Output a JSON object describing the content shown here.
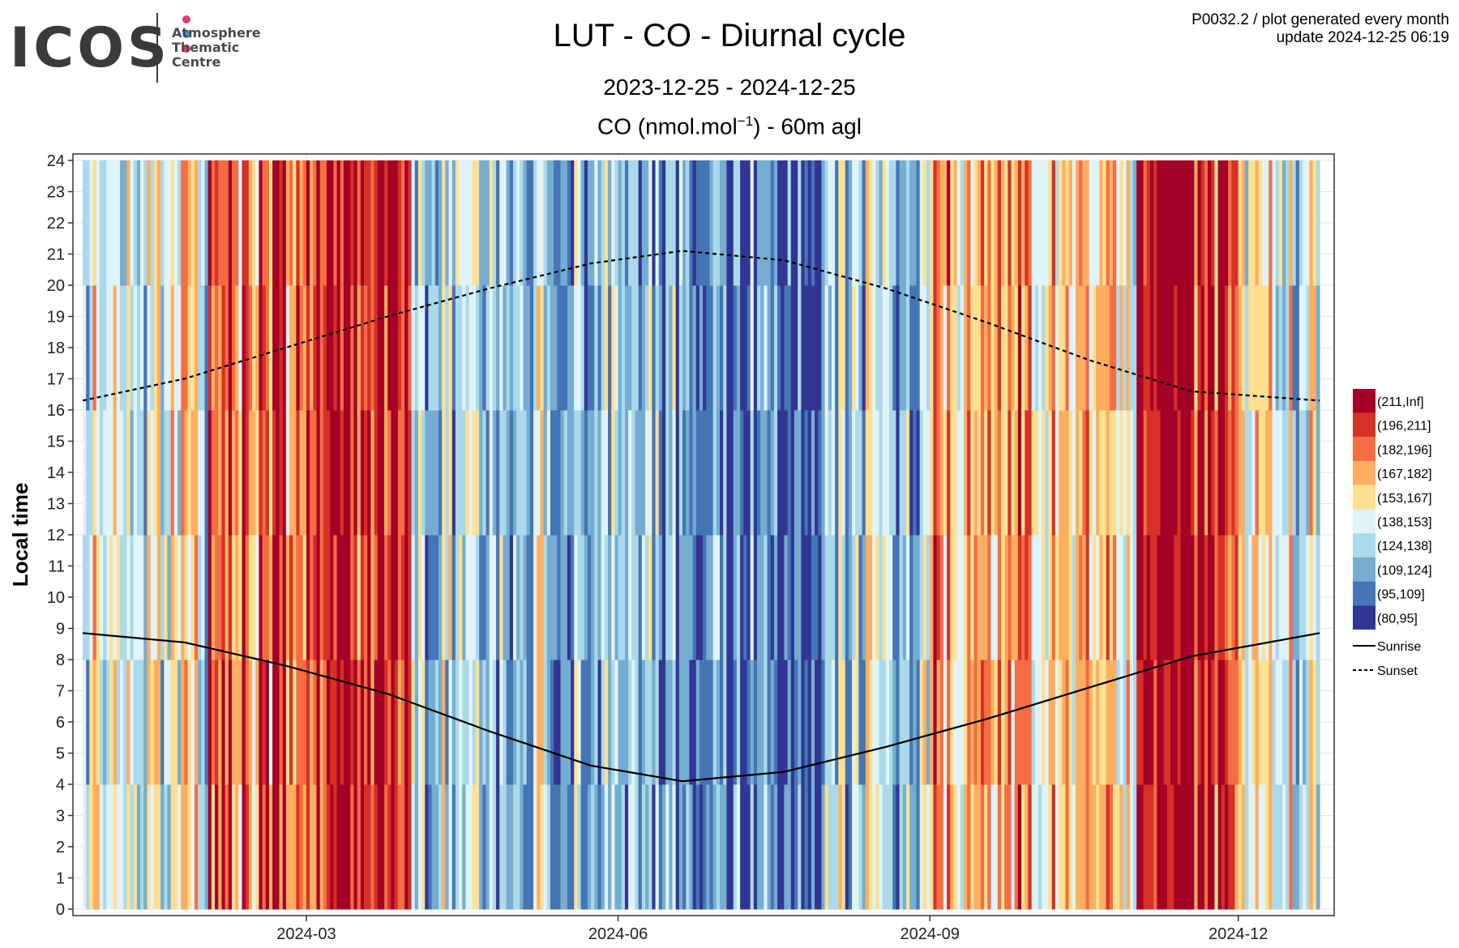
{
  "logo": {
    "word": "ICOS",
    "lines": [
      "Atmosphere",
      "Thematic",
      "Centre"
    ],
    "dot_colors": [
      "#e8356d",
      "#2e9fd9",
      "#e8356d"
    ]
  },
  "header": {
    "title": "LUT - CO - Diurnal cycle",
    "period": "2023-12-25 - 2024-12-25",
    "subtitle_pre": "CO (nmol.mol",
    "subtitle_sup": "−1",
    "subtitle_post": ") - 60m agl",
    "meta_line1": "P0032.2 / plot generated every month",
    "meta_line2": "update  2024-12-25 06:19"
  },
  "chart_data": {
    "type": "heatmap",
    "title": "LUT - CO - Diurnal cycle",
    "subtitle": "CO (nmol.mol-1) - 60m agl",
    "period": "2023-12-25 - 2024-12-25",
    "xlabel": "",
    "ylabel": "Local time",
    "x_start": "2023-12-26",
    "x_end": "2024-12-25",
    "x_ticks": [
      "2024-03",
      "2024-06",
      "2024-09",
      "2024-12"
    ],
    "x_tick_dates": [
      "2024-03-01",
      "2024-06-01",
      "2024-09-01",
      "2024-12-01"
    ],
    "ylim": [
      0,
      24
    ],
    "y_ticks": [
      0,
      1,
      2,
      3,
      4,
      5,
      6,
      7,
      8,
      9,
      10,
      11,
      12,
      13,
      14,
      15,
      16,
      17,
      18,
      19,
      20,
      21,
      22,
      23,
      24
    ],
    "grid": true,
    "legend_position": "right",
    "color_classes": [
      {
        "label": "(211,Inf]",
        "color": "#a50026"
      },
      {
        "label": "(196,211]",
        "color": "#d73027"
      },
      {
        "label": "(182,196]",
        "color": "#f46d43"
      },
      {
        "label": "(167,182]",
        "color": "#fdae61"
      },
      {
        "label": "(153,167]",
        "color": "#fee090"
      },
      {
        "label": "(138,153]",
        "color": "#e0f3f8"
      },
      {
        "label": "(124,138]",
        "color": "#abd9e9"
      },
      {
        "label": "(109,124]",
        "color": "#74add1"
      },
      {
        "label": "(95,109]",
        "color": "#4575b4"
      },
      {
        "label": "(80,95]",
        "color": "#313695"
      }
    ],
    "monthly_dominant_class": [
      {
        "month": "2024-01",
        "class": "(138,153]"
      },
      {
        "month": "2024-02",
        "class": "(182,196]"
      },
      {
        "month": "2024-03",
        "class": "(196,211]"
      },
      {
        "month": "2024-04",
        "class": "(124,138]"
      },
      {
        "month": "2024-05",
        "class": "(124,138]"
      },
      {
        "month": "2024-06",
        "class": "(109,124]"
      },
      {
        "month": "2024-07",
        "class": "(95,109]"
      },
      {
        "month": "2024-08",
        "class": "(124,138]"
      },
      {
        "month": "2024-09",
        "class": "(167,182]"
      },
      {
        "month": "2024-10",
        "class": "(153,167]"
      },
      {
        "month": "2024-11",
        "class": "(196,211]"
      },
      {
        "month": "2024-12",
        "class": "(138,153]"
      }
    ],
    "lines": [
      {
        "name": "Sunrise",
        "style": "solid",
        "dates": [
          "2023-12-26",
          "2024-01-25",
          "2024-02-24",
          "2024-03-25",
          "2024-04-24",
          "2024-05-24",
          "2024-06-20",
          "2024-07-20",
          "2024-08-19",
          "2024-09-18",
          "2024-10-18",
          "2024-11-17",
          "2024-12-25"
        ],
        "values": [
          8.85,
          8.55,
          7.8,
          6.9,
          5.7,
          4.6,
          4.1,
          4.4,
          5.2,
          6.1,
          7.1,
          8.1,
          8.85
        ]
      },
      {
        "name": "Sunset",
        "style": "dashed",
        "dates": [
          "2023-12-26",
          "2024-01-25",
          "2024-02-24",
          "2024-03-25",
          "2024-04-24",
          "2024-05-24",
          "2024-06-20",
          "2024-07-20",
          "2024-08-19",
          "2024-09-18",
          "2024-10-18",
          "2024-11-17",
          "2024-12-25"
        ],
        "values": [
          16.3,
          17.0,
          18.0,
          19.0,
          19.9,
          20.7,
          21.1,
          20.8,
          19.9,
          18.8,
          17.6,
          16.6,
          16.3
        ]
      }
    ]
  }
}
